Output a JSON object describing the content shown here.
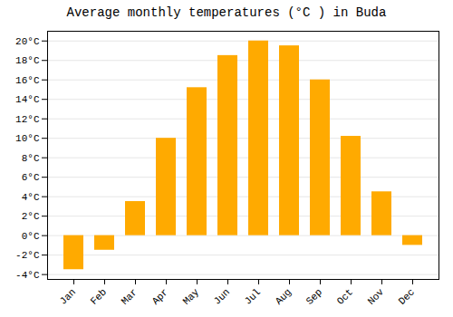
{
  "chart_data": {
    "type": "bar",
    "title": "Average monthly temperatures (°C ) in Buda",
    "categories": [
      "Jan",
      "Feb",
      "Mar",
      "Apr",
      "May",
      "Jun",
      "Jul",
      "Aug",
      "Sep",
      "Oct",
      "Nov",
      "Dec"
    ],
    "values": [
      -3.5,
      -1.5,
      3.5,
      10.0,
      15.2,
      18.5,
      20.0,
      19.5,
      16.0,
      10.2,
      4.5,
      -1.0
    ],
    "color": "#FFAA00",
    "ylim": [
      -4.5,
      21.0
    ],
    "yticks": [
      {
        "value": -4,
        "label": "-4°C"
      },
      {
        "value": -2,
        "label": "-2°C"
      },
      {
        "value": 0,
        "label": "0°C"
      },
      {
        "value": 2,
        "label": "2°C"
      },
      {
        "value": 4,
        "label": "4°C"
      },
      {
        "value": 6,
        "label": "6°C"
      },
      {
        "value": 8,
        "label": "8°C"
      },
      {
        "value": 10,
        "label": "10°C"
      },
      {
        "value": 12,
        "label": "12°C"
      },
      {
        "value": 14,
        "label": "14°C"
      },
      {
        "value": 16,
        "label": "16°C"
      },
      {
        "value": 18,
        "label": "18°C"
      },
      {
        "value": 20,
        "label": "20°C"
      }
    ],
    "grid": true
  }
}
